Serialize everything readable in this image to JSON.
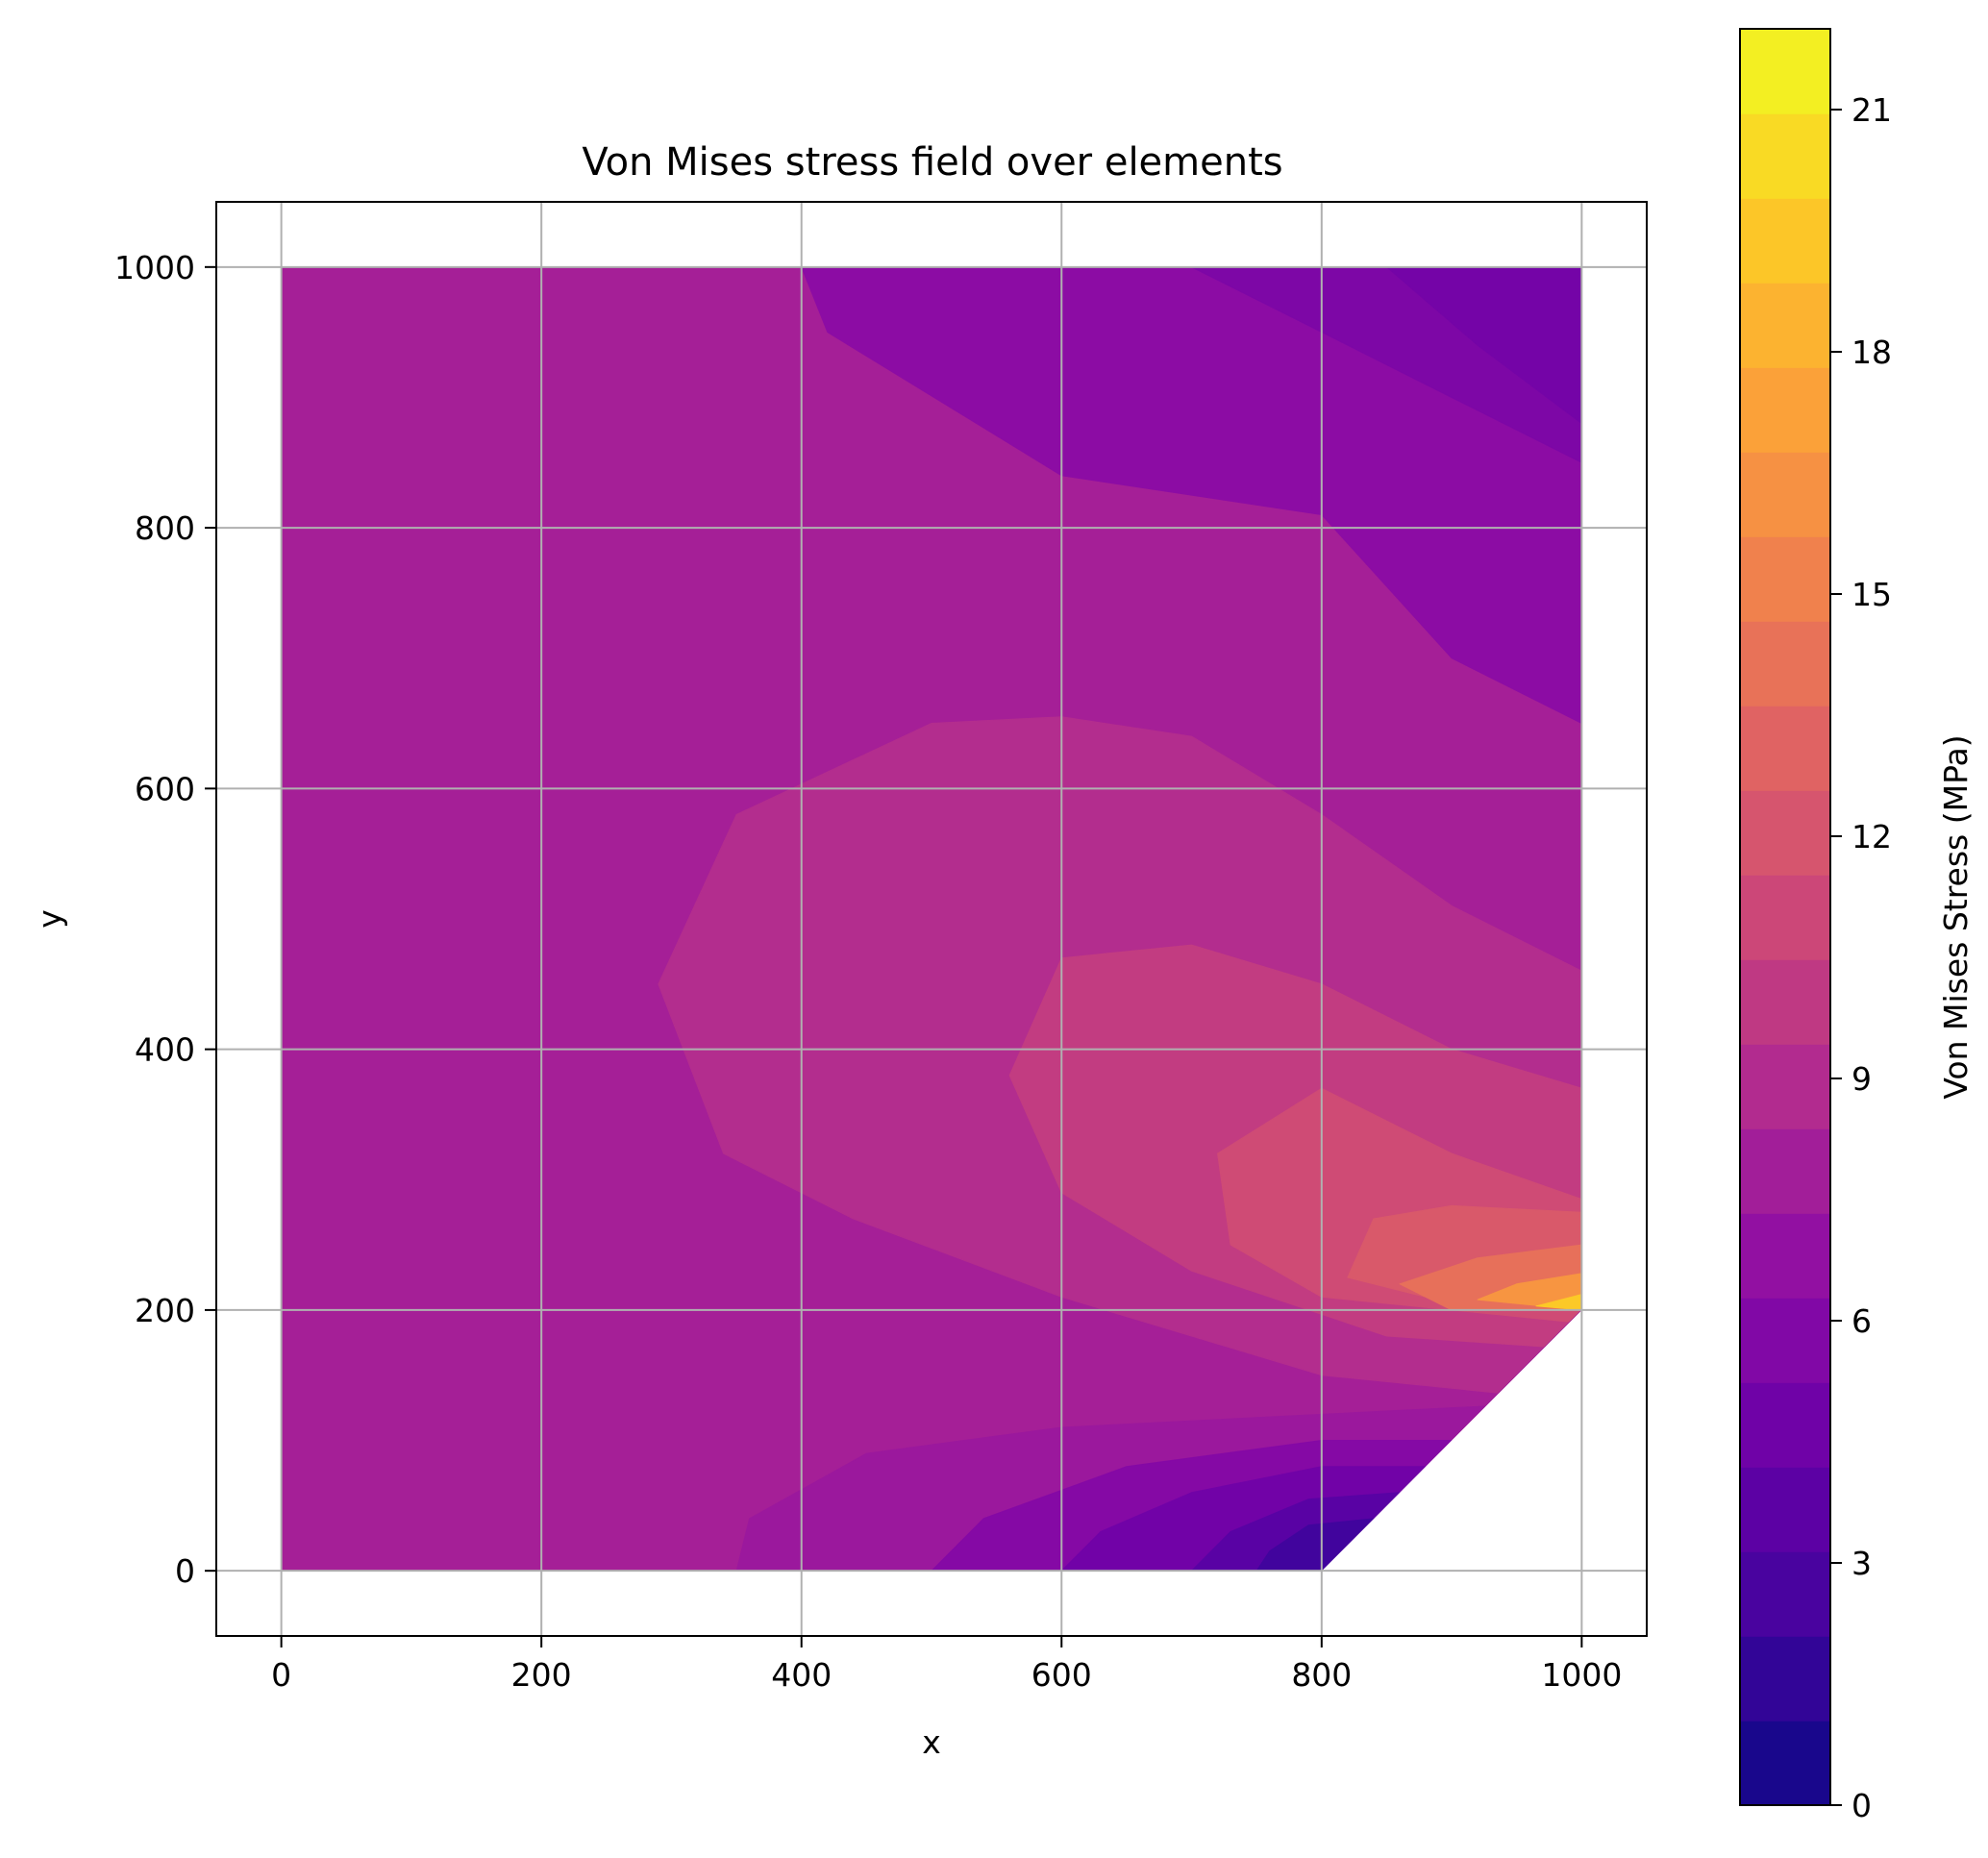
{
  "chart_data": {
    "type": "heatmap",
    "subtype": "filled-contour",
    "title": "Von Mises stress field over elements",
    "xlabel": "x",
    "ylabel": "y",
    "xlim": [
      -50,
      1050
    ],
    "ylim": [
      -50,
      1050
    ],
    "x_ticks": [
      "0",
      "200",
      "400",
      "600",
      "800",
      "1000"
    ],
    "y_ticks": [
      "0",
      "200",
      "400",
      "600",
      "800",
      "1000"
    ],
    "grid": true,
    "colormap": "plasma",
    "colorbar": {
      "label": "Von Mises Stress (MPa)",
      "range": [
        0,
        22
      ],
      "levels": 21,
      "ticks": [
        "0",
        "3",
        "6",
        "9",
        "12",
        "15",
        "18",
        "21"
      ]
    },
    "domain_polygon": [
      [
        0,
        0
      ],
      [
        800,
        0
      ],
      [
        1000,
        200
      ],
      [
        1000,
        1000
      ],
      [
        0,
        1000
      ]
    ],
    "stress_field": {
      "background_value": 8.0,
      "max_value": 22,
      "max_location": [
        1000,
        200
      ],
      "min_value": 0,
      "min_location": [
        800,
        0
      ]
    },
    "contour_regions": [
      {
        "level": 6.4,
        "polygon": [
          [
            400,
            1000
          ],
          [
            1000,
            1000
          ],
          [
            1000,
            650
          ],
          [
            900,
            700
          ],
          [
            800,
            810
          ],
          [
            600,
            840
          ],
          [
            420,
            950
          ]
        ]
      },
      {
        "level": 5.5,
        "polygon": [
          [
            700,
            1000
          ],
          [
            1000,
            1000
          ],
          [
            1000,
            850
          ],
          [
            900,
            900
          ],
          [
            800,
            950
          ]
        ]
      },
      {
        "level": 5.0,
        "polygon": [
          [
            850,
            1000
          ],
          [
            1000,
            1000
          ],
          [
            1000,
            880
          ],
          [
            920,
            940
          ]
        ]
      },
      {
        "level": 9.0,
        "polygon": [
          [
            600,
            655
          ],
          [
            500,
            650
          ],
          [
            350,
            580
          ],
          [
            290,
            450
          ],
          [
            340,
            320
          ],
          [
            440,
            270
          ],
          [
            600,
            210
          ],
          [
            800,
            150
          ],
          [
            1000,
            130
          ],
          [
            1000,
            460
          ],
          [
            900,
            510
          ],
          [
            800,
            580
          ],
          [
            700,
            640
          ]
        ]
      },
      {
        "level": 10.2,
        "polygon": [
          [
            700,
            480
          ],
          [
            600,
            470
          ],
          [
            560,
            380
          ],
          [
            600,
            290
          ],
          [
            700,
            230
          ],
          [
            850,
            180
          ],
          [
            1000,
            170
          ],
          [
            1000,
            370
          ],
          [
            900,
            400
          ],
          [
            800,
            450
          ]
        ]
      },
      {
        "level": 11.3,
        "polygon": [
          [
            800,
            370
          ],
          [
            720,
            320
          ],
          [
            730,
            250
          ],
          [
            800,
            210
          ],
          [
            1000,
            190
          ],
          [
            1000,
            285
          ],
          [
            900,
            320
          ]
        ]
      },
      {
        "level": 12.4,
        "polygon": [
          [
            840,
            270
          ],
          [
            820,
            225
          ],
          [
            900,
            205
          ],
          [
            1000,
            200
          ],
          [
            1000,
            275
          ],
          [
            900,
            280
          ]
        ]
      },
      {
        "level": 14.0,
        "polygon": [
          [
            860,
            220
          ],
          [
            900,
            200
          ],
          [
            1000,
            200
          ],
          [
            1000,
            250
          ],
          [
            920,
            240
          ]
        ]
      },
      {
        "level": 16.5,
        "polygon": [
          [
            920,
            208
          ],
          [
            1000,
            200
          ],
          [
            1000,
            228
          ],
          [
            950,
            220
          ]
        ]
      },
      {
        "level": 19.5,
        "polygon": [
          [
            965,
            203
          ],
          [
            1000,
            200
          ],
          [
            1000,
            212
          ]
        ]
      },
      {
        "level": 7.4,
        "polygon": [
          [
            350,
            0
          ],
          [
            800,
            0
          ],
          [
            1000,
            200
          ],
          [
            1000,
            130
          ],
          [
            800,
            120
          ],
          [
            600,
            110
          ],
          [
            450,
            90
          ],
          [
            360,
            40
          ]
        ]
      },
      {
        "level": 6.0,
        "polygon": [
          [
            500,
            0
          ],
          [
            800,
            0
          ],
          [
            900,
            100
          ],
          [
            800,
            100
          ],
          [
            650,
            80
          ],
          [
            540,
            40
          ]
        ]
      },
      {
        "level": 4.8,
        "polygon": [
          [
            600,
            0
          ],
          [
            800,
            0
          ],
          [
            880,
            80
          ],
          [
            800,
            80
          ],
          [
            700,
            60
          ],
          [
            630,
            30
          ]
        ]
      },
      {
        "level": 3.5,
        "polygon": [
          [
            700,
            0
          ],
          [
            800,
            0
          ],
          [
            860,
            60
          ],
          [
            790,
            55
          ],
          [
            730,
            30
          ]
        ]
      },
      {
        "level": 2.2,
        "polygon": [
          [
            750,
            0
          ],
          [
            800,
            0
          ],
          [
            840,
            40
          ],
          [
            790,
            35
          ],
          [
            760,
            15
          ]
        ]
      }
    ]
  }
}
